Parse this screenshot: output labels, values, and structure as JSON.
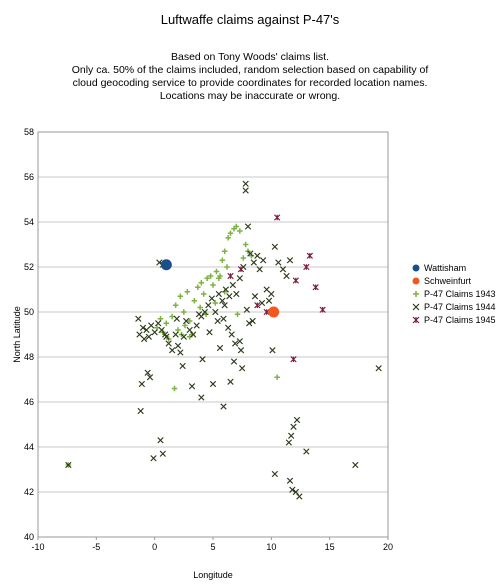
{
  "chart_data": {
    "type": "scatter",
    "title": "Luftwaffe claims against P-47's",
    "subtitle": [
      "Based on Tony Woods' claims list.",
      "Only ca. 50% of the claims included, random selection based on capability of",
      "cloud geocoding service to provide coordinates for recorded location names.",
      "Locations may be inaccurate or wrong."
    ],
    "xlabel": "Longitude",
    "ylabel": "North Latitude",
    "xlim": [
      -10,
      20
    ],
    "ylim": [
      40,
      58
    ],
    "xticks": [
      -10,
      -5,
      0,
      5,
      10,
      15,
      20
    ],
    "yticks": [
      40,
      42,
      44,
      46,
      48,
      50,
      52,
      54,
      56,
      58
    ],
    "grid": "horizontal",
    "legend_position": "right",
    "series": [
      {
        "name": "Wattisham",
        "marker": "circle",
        "color": "#1a4f8c",
        "points": [
          [
            1.0,
            52.1
          ]
        ]
      },
      {
        "name": "Schweinfurt",
        "marker": "circle",
        "color": "#f5561d",
        "points": [
          [
            10.2,
            50.0
          ]
        ]
      },
      {
        "name": "P-47 Claims 1943",
        "marker": "plus",
        "color": "#7cb342",
        "points": [
          [
            -7.4,
            43.2
          ],
          [
            0.2,
            49.3
          ],
          [
            0.5,
            49.7
          ],
          [
            1.0,
            49.5
          ],
          [
            1.5,
            49.8
          ],
          [
            1.8,
            50.3
          ],
          [
            2.0,
            49.2
          ],
          [
            2.2,
            50.7
          ],
          [
            2.5,
            50.0
          ],
          [
            2.8,
            50.9
          ],
          [
            3.0,
            49.6
          ],
          [
            3.2,
            49.0
          ],
          [
            3.4,
            50.5
          ],
          [
            3.7,
            51.1
          ],
          [
            4.0,
            51.3
          ],
          [
            4.2,
            50.8
          ],
          [
            4.5,
            51.5
          ],
          [
            4.8,
            51.6
          ],
          [
            5.0,
            51.2
          ],
          [
            5.3,
            51.8
          ],
          [
            5.5,
            51.5
          ],
          [
            5.8,
            52.3
          ],
          [
            6.0,
            52.7
          ],
          [
            6.3,
            53.3
          ],
          [
            6.5,
            53.5
          ],
          [
            6.8,
            53.7
          ],
          [
            7.0,
            53.8
          ],
          [
            7.3,
            53.6
          ],
          [
            7.6,
            52.4
          ],
          [
            7.8,
            53.0
          ],
          [
            8.0,
            52.7
          ],
          [
            8.3,
            52.5
          ],
          [
            1.7,
            46.6
          ],
          [
            10.5,
            47.1
          ],
          [
            3.0,
            48.9
          ],
          [
            6.0,
            50.9
          ],
          [
            7.1,
            49.9
          ],
          [
            2.6,
            49.4
          ],
          [
            4.4,
            49.9
          ],
          [
            5.6,
            51.6
          ],
          [
            6.2,
            52.0
          ],
          [
            1.2,
            48.8
          ],
          [
            0.7,
            49.1
          ],
          [
            2.3,
            49.0
          ],
          [
            3.9,
            50.2
          ],
          [
            5.2,
            50.4
          ]
        ]
      },
      {
        "name": "P-47 Claims 1944",
        "marker": "x",
        "color": "#2b3a1a",
        "points": [
          [
            -7.4,
            43.2
          ],
          [
            -1.3,
            49.0
          ],
          [
            -1.0,
            49.3
          ],
          [
            -0.7,
            49.2
          ],
          [
            -0.5,
            48.9
          ],
          [
            -0.3,
            49.4
          ],
          [
            -1.4,
            49.7
          ],
          [
            -1.1,
            46.8
          ],
          [
            -1.2,
            45.6
          ],
          [
            -0.6,
            47.3
          ],
          [
            -0.4,
            47.1
          ],
          [
            0.0,
            49.1
          ],
          [
            0.3,
            49.5
          ],
          [
            0.6,
            49.2
          ],
          [
            0.9,
            49.0
          ],
          [
            1.2,
            48.6
          ],
          [
            1.5,
            48.3
          ],
          [
            1.8,
            49.0
          ],
          [
            2.0,
            48.5
          ],
          [
            2.2,
            48.2
          ],
          [
            2.5,
            48.9
          ],
          [
            3.0,
            49.2
          ],
          [
            3.3,
            49.0
          ],
          [
            3.6,
            49.4
          ],
          [
            4.0,
            49.8
          ],
          [
            4.3,
            50.0
          ],
          [
            4.6,
            50.3
          ],
          [
            4.9,
            50.6
          ],
          [
            5.2,
            50.0
          ],
          [
            5.5,
            50.8
          ],
          [
            5.8,
            50.5
          ],
          [
            6.1,
            51.0
          ],
          [
            6.4,
            50.7
          ],
          [
            6.7,
            51.2
          ],
          [
            7.0,
            50.8
          ],
          [
            7.3,
            51.5
          ],
          [
            7.6,
            52.0
          ],
          [
            7.8,
            55.7
          ],
          [
            7.8,
            55.4
          ],
          [
            8.0,
            53.8
          ],
          [
            8.2,
            52.6
          ],
          [
            8.5,
            52.2
          ],
          [
            8.8,
            52.5
          ],
          [
            9.0,
            51.9
          ],
          [
            9.3,
            52.3
          ],
          [
            9.6,
            51.0
          ],
          [
            9.8,
            50.5
          ],
          [
            10.0,
            50.8
          ],
          [
            10.3,
            52.9
          ],
          [
            10.6,
            52.2
          ],
          [
            11.0,
            51.9
          ],
          [
            11.3,
            51.6
          ],
          [
            11.6,
            52.3
          ],
          [
            0.4,
            52.2
          ],
          [
            0.7,
            52.1
          ],
          [
            5.9,
            45.8
          ],
          [
            4.0,
            46.2
          ],
          [
            5.0,
            46.8
          ],
          [
            3.2,
            46.7
          ],
          [
            6.5,
            46.9
          ],
          [
            7.5,
            47.5
          ],
          [
            0.5,
            44.3
          ],
          [
            0.7,
            43.7
          ],
          [
            -0.1,
            43.5
          ],
          [
            10.3,
            42.8
          ],
          [
            11.6,
            42.5
          ],
          [
            11.8,
            42.1
          ],
          [
            12.1,
            42.0
          ],
          [
            12.4,
            41.8
          ],
          [
            12.2,
            45.2
          ],
          [
            11.9,
            44.9
          ],
          [
            11.7,
            44.5
          ],
          [
            11.5,
            44.2
          ],
          [
            13.0,
            43.8
          ],
          [
            17.2,
            43.2
          ],
          [
            19.2,
            47.5
          ],
          [
            6.6,
            49.0
          ],
          [
            6.9,
            48.6
          ],
          [
            7.3,
            48.7
          ],
          [
            5.9,
            49.7
          ],
          [
            4.7,
            49.1
          ],
          [
            3.8,
            49.9
          ],
          [
            2.7,
            49.6
          ],
          [
            1.9,
            49.7
          ],
          [
            6.0,
            50.3
          ],
          [
            5.4,
            49.6
          ],
          [
            7.9,
            50.1
          ],
          [
            8.4,
            49.6
          ],
          [
            9.2,
            50.4
          ],
          [
            8.6,
            50.7
          ],
          [
            6.3,
            49.3
          ],
          [
            7.4,
            48.3
          ],
          [
            8.1,
            49.5
          ],
          [
            1.0,
            48.9
          ],
          [
            -0.9,
            48.8
          ],
          [
            2.4,
            47.6
          ],
          [
            4.1,
            47.9
          ],
          [
            5.6,
            48.4
          ],
          [
            6.8,
            47.8
          ],
          [
            10.1,
            48.3
          ]
        ]
      },
      {
        "name": "P-47 Claims 1945",
        "marker": "asterisk",
        "color": "#7a1c3c",
        "points": [
          [
            10.5,
            54.2
          ],
          [
            13.3,
            52.5
          ],
          [
            13.0,
            52.0
          ],
          [
            13.8,
            51.1
          ],
          [
            14.4,
            50.1
          ],
          [
            11.9,
            47.9
          ],
          [
            9.6,
            50.0
          ],
          [
            6.5,
            51.6
          ],
          [
            7.4,
            51.9
          ],
          [
            8.8,
            50.3
          ],
          [
            12.1,
            51.4
          ]
        ]
      }
    ]
  }
}
